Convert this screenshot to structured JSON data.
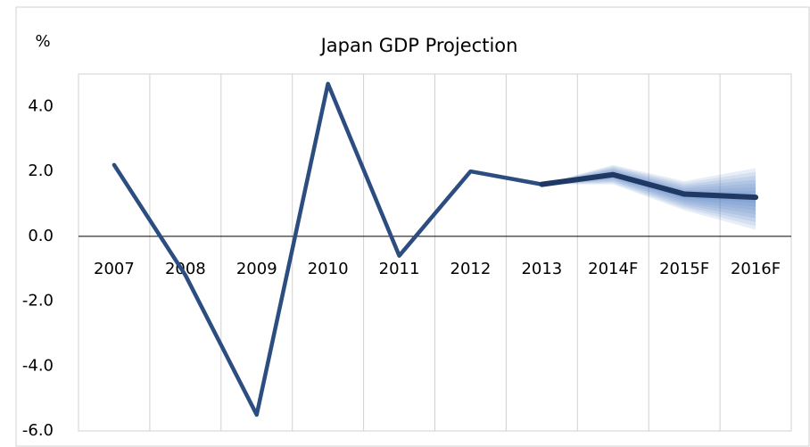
{
  "chart_data": {
    "type": "line",
    "title": "Japan GDP Projection",
    "y_label": "%",
    "categories": [
      "2007",
      "2008",
      "2009",
      "2010",
      "2011",
      "2012",
      "2013",
      "2014F",
      "2015F",
      "2016F"
    ],
    "series": [
      {
        "color": "#2c4d80",
        "values": [
          2.2,
          -1.2,
          -5.5,
          4.7,
          -0.6,
          2.0,
          1.6,
          null,
          null,
          null
        ]
      },
      {
        "color": "#1f3864",
        "values": [
          null,
          null,
          null,
          null,
          null,
          null,
          1.6,
          1.9,
          1.3,
          1.2
        ]
      }
    ],
    "forecast_band": {
      "color": "#4a7cc4",
      "lower": [
        null,
        null,
        null,
        null,
        null,
        null,
        1.6,
        1.6,
        0.8,
        0.2
      ],
      "upper": [
        null,
        null,
        null,
        null,
        null,
        null,
        1.6,
        2.2,
        1.7,
        2.1
      ]
    },
    "ylim": [
      -6,
      5
    ],
    "yticks": [
      {
        "value": -6,
        "label": "-6.0"
      },
      {
        "value": -4,
        "label": "-4.0"
      },
      {
        "value": -2,
        "label": "-2.0"
      },
      {
        "value": 0,
        "label": "0.0"
      },
      {
        "value": 2,
        "label": "2.0"
      },
      {
        "value": 4,
        "label": "4.0"
      }
    ],
    "grid": true
  }
}
